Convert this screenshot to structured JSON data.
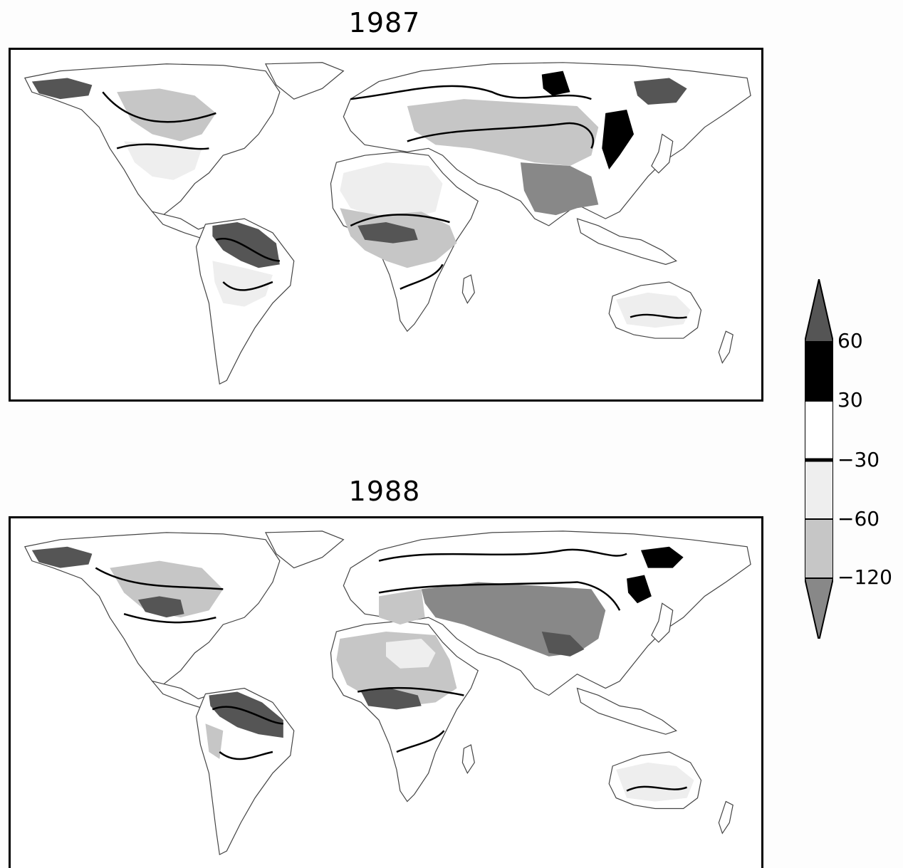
{
  "panels": [
    {
      "title": "1987"
    },
    {
      "title": "1988"
    }
  ],
  "colorbar": {
    "labels": [
      "60",
      "30",
      "−30",
      "−60",
      "−120"
    ],
    "bands": [
      {
        "color": "#555555"
      },
      {
        "color": "#000000"
      },
      {
        "color": "#ffffff"
      },
      {
        "color": "#eeeeee"
      },
      {
        "color": "#c6c6c6"
      },
      {
        "color": "#888888"
      }
    ]
  },
  "colors": {
    "land_outline": "#444444",
    "contour": "#000000",
    "shade_light": "#eeeeee",
    "shade_mid": "#c6c6c6",
    "shade_dark": "#888888",
    "shade_darker": "#555555",
    "shade_black": "#000000"
  }
}
